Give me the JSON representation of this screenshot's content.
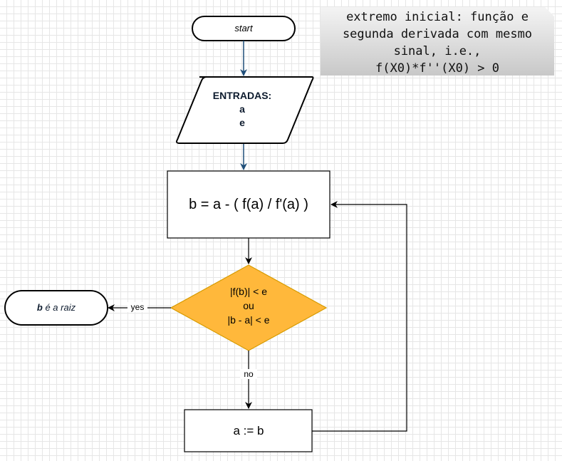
{
  "start": {
    "label": "start"
  },
  "inputs": {
    "title": "ENTRADAS:",
    "var1": "a",
    "var2": "e"
  },
  "process": {
    "formula": "b = a - ( f(a) / f'(a) )"
  },
  "decision": {
    "line1": "|f(b)| < e",
    "line2": "ou",
    "line3": "|b - a| < e",
    "fill_color": "#ffb83b",
    "stroke_color": "#d79b00"
  },
  "terminal": {
    "bold": "b",
    "rest": " é a raiz"
  },
  "edges": {
    "yes_label": "yes",
    "no_label": "no"
  },
  "assign": {
    "label": "a := b"
  },
  "note": {
    "lines": [
      "extremo inicial: função e",
      "segunda derivada com mesmo",
      "sinal, i.e.,",
      "f(X0)*f''(X0) > 0"
    ]
  },
  "colors": {
    "arrow": "#1f4e79",
    "line": "#000000",
    "note_fill": "#dddddd"
  }
}
